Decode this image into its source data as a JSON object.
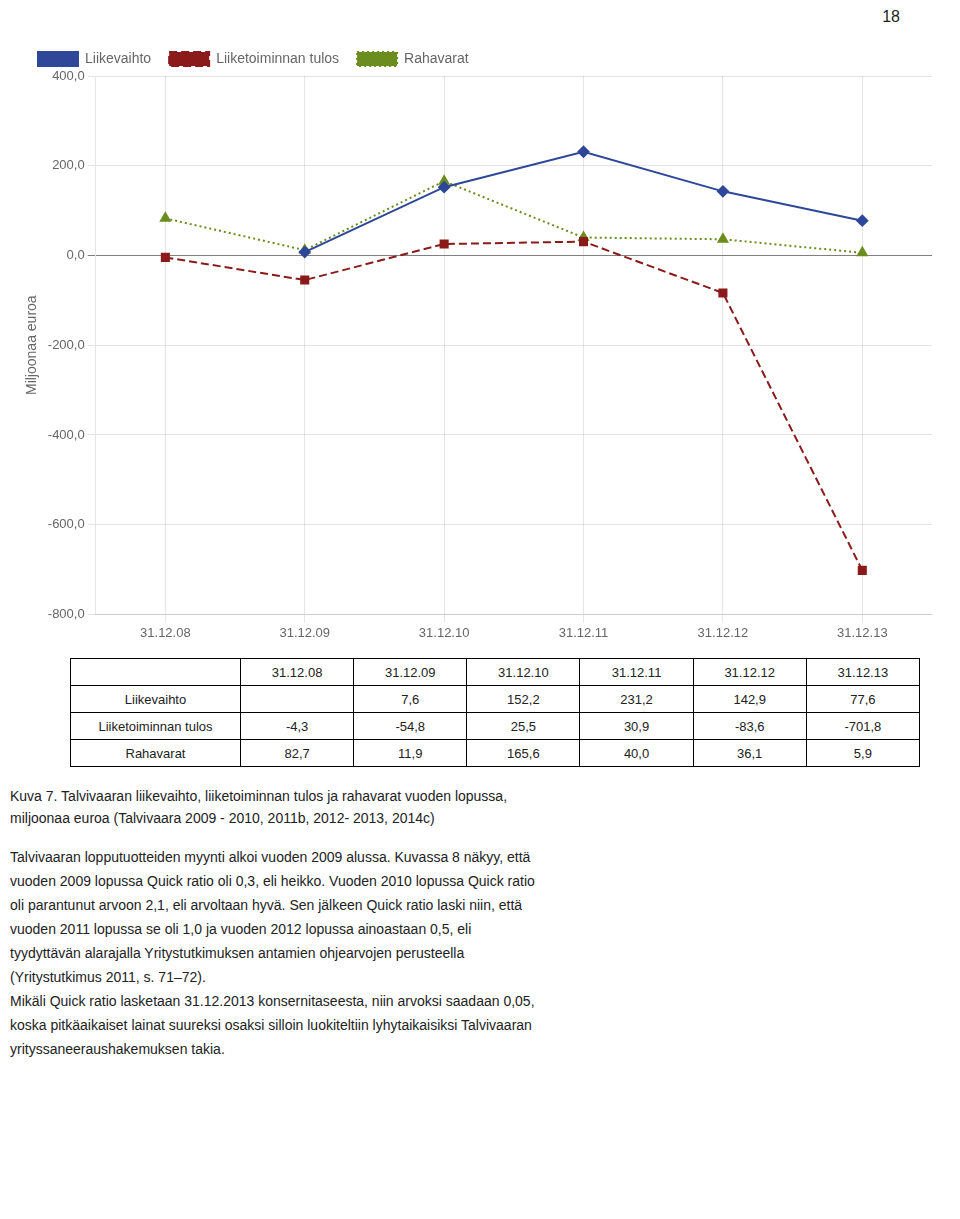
{
  "chart_data": {
    "type": "line",
    "categories": [
      "31.12.08",
      "31.12.09",
      "31.12.10",
      "31.12.11",
      "31.12.12",
      "31.12.13"
    ],
    "series": [
      {
        "name": "Liikevaihto",
        "color": "#2E4799",
        "marker": "diamond",
        "line_style": "solid",
        "values": [
          null,
          7.6,
          152.2,
          231.2,
          142.9,
          77.6
        ]
      },
      {
        "name": "Liiketoiminnan tulos",
        "color": "#8B1A1A",
        "marker": "square",
        "line_style": "dashed",
        "values": [
          -4.3,
          -54.8,
          25.5,
          30.9,
          -83.6,
          -701.8
        ]
      },
      {
        "name": "Rahavarat",
        "color": "#6B8C1E",
        "marker": "triangle",
        "line_style": "dotted",
        "values": [
          82.7,
          11.9,
          165.6,
          40.0,
          36.1,
          5.9
        ]
      }
    ],
    "ylim": [
      -800,
      400
    ],
    "yticks": [
      {
        "value": -800,
        "label": "-800,0"
      },
      {
        "value": -600,
        "label": "-600,0"
      },
      {
        "value": -400,
        "label": "-400,0"
      },
      {
        "value": -200,
        "label": "-200,0"
      },
      {
        "value": 0,
        "label": "0,0"
      },
      {
        "value": 200,
        "label": "200,0"
      },
      {
        "value": 400,
        "label": "400,0"
      }
    ],
    "y_label": "Miljoonaa euroa",
    "grid": true,
    "legend": "top"
  },
  "table": {
    "col_labels": [
      "31.12.08",
      "31.12.09",
      "31.12.10",
      "31.12.11",
      "31.12.12",
      "31.12.13"
    ],
    "row_labels": [
      "Liikevaihto",
      "Liiketoiminnan tulos",
      "Rahavarat"
    ],
    "cells": [
      [
        null,
        "7,6",
        "152,2",
        "231,2",
        "142,9",
        "77,6"
      ],
      [
        "-4,3",
        "-54,8",
        "25,5",
        "30,9",
        "-83,6",
        "-701,8"
      ],
      [
        "82,7",
        "11,9",
        "165,6",
        "40,0",
        "36,1",
        "5,9"
      ]
    ]
  },
  "page_number": "18",
  "caption": [
    "Kuva 7.  Talvivaaran liikevaihto, liiketoiminnan tulos ja rahavarat vuoden lopussa,",
    "miljoonaa euroa (Talvivaara 2009 - 2010, 2011b, 2012- 2013, 2014c)"
  ],
  "body_text": [
    "Talvivaaran lopputuotteiden myynti alkoi vuoden 2009 alussa.  Kuvassa 8 näkyy, että",
    "vuoden 2009 lopussa Quick ratio oli 0,3, eli heikko. Vuoden 2010 lopussa Quick ratio",
    "oli parantunut arvoon 2,1, eli arvoltaan hyvä. Sen jälkeen Quick ratio laski niin, että",
    "vuoden 2011 lopussa se oli 1,0 ja vuoden 2012 lopussa ainoastaan 0,5, eli",
    "tyydyttävän alarajalla Yritystutkimuksen antamien ohjearvojen perusteella",
    "(Yritystutkimus 2011, s. 71–72).",
    "Mikäli Quick ratio lasketaan 31.12.2013 konsernitaseesta, niin arvoksi saadaan 0,05,",
    "koska pitkäaikaiset lainat suureksi osaksi silloin luokiteltiin lyhytaikaisiksi Talvivaaran",
    "yrityssaneeraushakemuksen takia."
  ]
}
